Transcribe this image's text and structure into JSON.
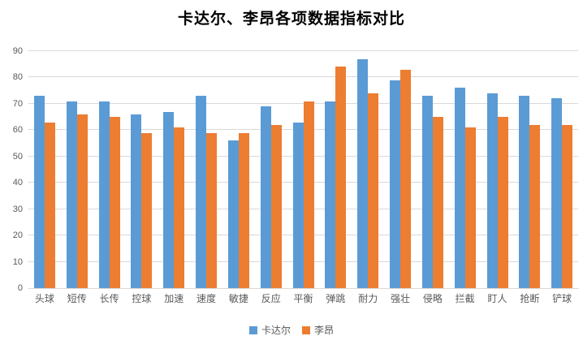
{
  "chart_data": {
    "type": "bar",
    "title": "卡达尔、李昂各项数据指标对比",
    "categories": [
      "头球",
      "短传",
      "长传",
      "控球",
      "加速",
      "速度",
      "敏捷",
      "反应",
      "平衡",
      "弹跳",
      "耐力",
      "强壮",
      "侵略",
      "拦截",
      "盯人",
      "抢断",
      "铲球"
    ],
    "series": [
      {
        "name": "卡达尔",
        "color": "#5b9bd5",
        "values": [
          73,
          71,
          71,
          66,
          67,
          73,
          56,
          69,
          63,
          71,
          87,
          79,
          73,
          76,
          74,
          73,
          72
        ]
      },
      {
        "name": "李昂",
        "color": "#ed7d31",
        "values": [
          63,
          66,
          65,
          59,
          61,
          59,
          59,
          62,
          71,
          84,
          74,
          83,
          65,
          61,
          65,
          62,
          62
        ]
      }
    ],
    "xlabel": "",
    "ylabel": "",
    "ylim": [
      0,
      90
    ],
    "ytick_step": 10,
    "yticks": [
      0,
      10,
      20,
      30,
      40,
      50,
      60,
      70,
      80,
      90
    ],
    "grid": true,
    "legend_position": "bottom",
    "colors": {
      "gridline": "#d9d9d9",
      "axis_text": "#595959",
      "title_text": "#000000",
      "background": "#ffffff"
    }
  }
}
